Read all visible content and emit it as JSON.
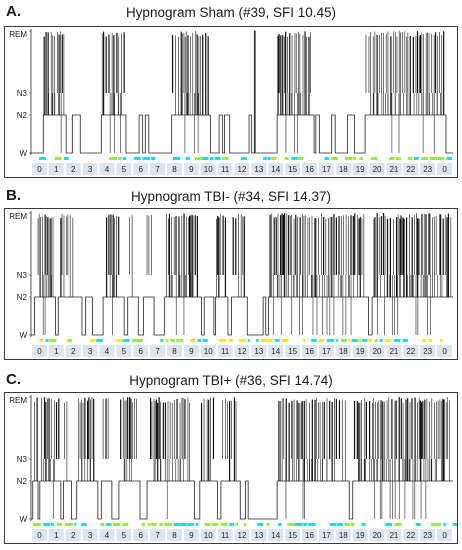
{
  "chart_data": [
    {
      "type": "line",
      "panel_label": "A.",
      "title": "Hypnogram Sham (#39, SFI 10.45)",
      "y_categories": [
        "W",
        "N2",
        "N3",
        "REM"
      ],
      "x_tick_labels": [
        "0",
        "1",
        "2",
        "3",
        "4",
        "5",
        "6",
        "7",
        "8",
        "9",
        "10",
        "11",
        "12",
        "13",
        "14",
        "15",
        "16",
        "17",
        "18",
        "19",
        "20",
        "21",
        "22",
        "23",
        "0"
      ],
      "x_unit": "hour",
      "xlim": [
        0,
        24
      ],
      "stage_codes": {
        "W": 0,
        "N2": 1,
        "N3": 2,
        "REM": 3
      },
      "series": [
        {
          "segments": [
            [
              0.0,
              0
            ],
            [
              0.7,
              1
            ],
            [
              2.0,
              0
            ],
            [
              2.35,
              1
            ],
            [
              2.8,
              0
            ],
            [
              4.0,
              1
            ],
            [
              5.4,
              0
            ],
            [
              6.15,
              1
            ],
            [
              6.35,
              0
            ],
            [
              6.5,
              1
            ],
            [
              6.7,
              0
            ],
            [
              8.0,
              1
            ],
            [
              10.2,
              0
            ],
            [
              10.7,
              1
            ],
            [
              10.9,
              0
            ],
            [
              11.0,
              1
            ],
            [
              11.3,
              0
            ],
            [
              12.4,
              1
            ],
            [
              12.55,
              0
            ],
            [
              12.7,
              3
            ],
            [
              12.75,
              0
            ],
            [
              14.0,
              1
            ],
            [
              16.1,
              0
            ],
            [
              16.2,
              1
            ],
            [
              16.4,
              0
            ],
            [
              17.1,
              1
            ],
            [
              17.3,
              0
            ],
            [
              18.0,
              1
            ],
            [
              18.4,
              0
            ],
            [
              19.0,
              1
            ],
            [
              23.6,
              0
            ],
            [
              24.0,
              0
            ]
          ],
          "rem_bursts": [
            [
              0.75,
              1.95
            ],
            [
              4.05,
              5.35
            ],
            [
              8.05,
              10.15
            ],
            [
              14.05,
              16.0
            ],
            [
              19.05,
              23.5
            ]
          ],
          "n3_bursts": [
            [
              1.0,
              1.8
            ],
            [
              4.5,
              5.2
            ],
            [
              8.6,
              9.8
            ],
            [
              14.5,
              15.6
            ],
            [
              19.5,
              23.3
            ]
          ]
        }
      ],
      "wake_bar_colors": [
        "#2cd7e0",
        "#9ae850"
      ]
    },
    {
      "type": "line",
      "panel_label": "B.",
      "title": "Hypnogram TBI- (#34, SFI 14.37)",
      "y_categories": [
        "W",
        "N2",
        "N3",
        "REM"
      ],
      "x_tick_labels": [
        "0",
        "1",
        "2",
        "3",
        "4",
        "5",
        "6",
        "7",
        "8",
        "9",
        "10",
        "11",
        "12",
        "13",
        "14",
        "15",
        "16",
        "17",
        "18",
        "19",
        "20",
        "21",
        "22",
        "23",
        "0"
      ],
      "x_unit": "hour",
      "xlim": [
        0,
        24
      ],
      "stage_codes": {
        "W": 0,
        "N2": 1,
        "N3": 2,
        "REM": 3
      },
      "series": [
        {
          "segments": [
            [
              0.0,
              0
            ],
            [
              0.2,
              1
            ],
            [
              1.4,
              0
            ],
            [
              1.55,
              1
            ],
            [
              2.9,
              0
            ],
            [
              3.1,
              1
            ],
            [
              3.5,
              0
            ],
            [
              4.1,
              1
            ],
            [
              5.3,
              0
            ],
            [
              5.5,
              1
            ],
            [
              6.1,
              0
            ],
            [
              6.4,
              1
            ],
            [
              7.0,
              0
            ],
            [
              7.6,
              1
            ],
            [
              9.7,
              0
            ],
            [
              9.85,
              1
            ],
            [
              10.4,
              0
            ],
            [
              10.5,
              1
            ],
            [
              11.2,
              0
            ],
            [
              11.4,
              1
            ],
            [
              12.3,
              0
            ],
            [
              13.2,
              1
            ],
            [
              13.35,
              0
            ],
            [
              13.5,
              1
            ],
            [
              19.2,
              0
            ],
            [
              19.4,
              1
            ],
            [
              24.0,
              1
            ]
          ],
          "rem_bursts": [
            [
              0.4,
              1.3
            ],
            [
              1.7,
              2.5
            ],
            [
              4.3,
              5.1
            ],
            [
              5.6,
              5.9
            ],
            [
              6.6,
              6.9
            ],
            [
              7.7,
              9.6
            ],
            [
              10.55,
              11.1
            ],
            [
              11.5,
              12.2
            ],
            [
              13.6,
              19.0
            ],
            [
              19.5,
              23.9
            ]
          ],
          "n3_bursts": [
            [
              0.5,
              1.2
            ],
            [
              4.5,
              5.0
            ],
            [
              7.9,
              9.3
            ],
            [
              13.8,
              18.5
            ],
            [
              19.7,
              23.5
            ]
          ]
        }
      ],
      "wake_bar_colors": [
        "#2cd7e0",
        "#9ae850",
        "#f4e53a"
      ]
    },
    {
      "type": "line",
      "panel_label": "C.",
      "title": "Hypnogram TBI+ (#36, SFI 14.74)",
      "y_categories": [
        "W",
        "N2",
        "N3",
        "REM"
      ],
      "x_tick_labels": [
        "0",
        "1",
        "2",
        "3",
        "4",
        "5",
        "6",
        "7",
        "8",
        "9",
        "10",
        "11",
        "12",
        "13",
        "14",
        "15",
        "16",
        "17",
        "18",
        "19",
        "20",
        "21",
        "22",
        "23",
        "0"
      ],
      "x_unit": "hour",
      "xlim": [
        0,
        24
      ],
      "stage_codes": {
        "W": 0,
        "N2": 1,
        "N3": 2,
        "REM": 3
      },
      "series": [
        {
          "segments": [
            [
              0.0,
              0
            ],
            [
              0.1,
              1
            ],
            [
              0.4,
              0
            ],
            [
              0.5,
              1
            ],
            [
              1.7,
              0
            ],
            [
              1.85,
              1
            ],
            [
              2.3,
              0
            ],
            [
              2.6,
              1
            ],
            [
              3.8,
              0
            ],
            [
              4.0,
              1
            ],
            [
              4.6,
              0
            ],
            [
              5.0,
              1
            ],
            [
              6.2,
              0
            ],
            [
              6.6,
              1
            ],
            [
              9.3,
              0
            ],
            [
              9.6,
              1
            ],
            [
              10.6,
              0
            ],
            [
              10.8,
              1
            ],
            [
              11.9,
              0
            ],
            [
              12.2,
              1
            ],
            [
              12.35,
              0
            ],
            [
              14.0,
              1
            ],
            [
              18.1,
              0
            ],
            [
              18.3,
              1
            ],
            [
              24.0,
              1
            ]
          ],
          "rem_bursts": [
            [
              0.2,
              0.35
            ],
            [
              0.6,
              1.6
            ],
            [
              1.9,
              2.2
            ],
            [
              2.7,
              3.7
            ],
            [
              4.1,
              4.5
            ],
            [
              5.1,
              6.0
            ],
            [
              6.8,
              9.1
            ],
            [
              9.7,
              10.4
            ],
            [
              10.9,
              11.7
            ],
            [
              14.1,
              17.9
            ],
            [
              18.4,
              23.8
            ]
          ],
          "n3_bursts": [
            [
              0.7,
              1.4
            ],
            [
              2.9,
              3.5
            ],
            [
              5.3,
              5.8
            ],
            [
              7.2,
              8.8
            ],
            [
              14.5,
              17.0
            ],
            [
              18.8,
              23.0
            ]
          ]
        }
      ],
      "wake_bar_colors": [
        "#2cd7e0",
        "#9ae850"
      ]
    }
  ]
}
